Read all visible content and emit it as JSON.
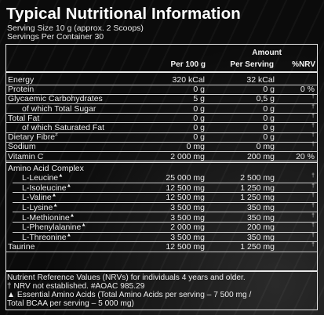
{
  "title": "Typical Nutritional Information",
  "serving_size": "Serving Size 10 g (approx. 2 Scoops)",
  "servings_per_container": "Servings Per Container 30",
  "headers": {
    "per_100g": "Per 100 g",
    "amount": "Amount",
    "per_serving": "Per Serving",
    "nrv": "%NRV"
  },
  "rows": [
    {
      "name": "Energy",
      "per100": "320 kCal",
      "serving": "32 kCal",
      "nrv": ""
    },
    {
      "name": "Protein",
      "per100": "0 g",
      "serving": "0 g",
      "nrv": "0 %"
    },
    {
      "name": "Glycaemic Carbohydrates",
      "per100": "5 g",
      "serving": "0,5 g",
      "nrv": "†"
    },
    {
      "name": "of which Total Sugar",
      "per100": "0 g",
      "serving": "0 g",
      "nrv": "†"
    },
    {
      "name": "Total Fat",
      "per100": "0 g",
      "serving": "0 g",
      "nrv": "†"
    },
    {
      "name": "of which Saturated Fat",
      "per100": "0 g",
      "serving": "0 g",
      "nrv": "†"
    },
    {
      "name": "Dietary Fibre",
      "sup": "#",
      "per100": "0 g",
      "serving": "0 g",
      "nrv": "†"
    },
    {
      "name": "Sodium",
      "per100": "0 mg",
      "serving": "0 mg",
      "nrv": "†"
    },
    {
      "name": "Vitamin C",
      "per100": "2 000 mg",
      "serving": "200 mg",
      "nrv": "20 %"
    }
  ],
  "amino_header": "Amino Acid Complex",
  "amino_rows": [
    {
      "name": "L-Leucine",
      "sup": "▲",
      "per100": "25 000 mg",
      "serving": "2 500 mg",
      "nrv": "†"
    },
    {
      "name": "L-Isoleucine",
      "sup": "▲",
      "per100": "12 500 mg",
      "serving": "1 250 mg",
      "nrv": "†"
    },
    {
      "name": "L-Valine",
      "sup": "▲",
      "per100": "12 500 mg",
      "serving": "1 250 mg",
      "nrv": "†"
    },
    {
      "name": "L-Lysine",
      "sup": "▲",
      "per100": "3 500 mg",
      "serving": "350 mg",
      "nrv": "†"
    },
    {
      "name": "L-Methionine",
      "sup": "▲",
      "per100": "3 500 mg",
      "serving": "350 mg",
      "nrv": "†"
    },
    {
      "name": "L-Phenylalanine",
      "sup": "▲",
      "per100": "2 000 mg",
      "serving": "200 mg",
      "nrv": "†"
    },
    {
      "name": "L-Threonine",
      "sup": "▲",
      "per100": "3 500 mg",
      "serving": "350 mg",
      "nrv": "†"
    },
    {
      "name": "Taurine",
      "per100": "12 500 mg",
      "serving": "1 250 mg",
      "nrv": "†"
    }
  ],
  "footnotes": {
    "line1": "Nutrient Reference Values (NRVs) for individuals 4 years and older.",
    "line2": "† NRV not established. #AOAC 985.29",
    "line3": "▲ Essential Amino Acids (Total Amino Acids per serving – 7 500 mg /",
    "line4": "Total BCAA per serving – 5 000 mg)"
  }
}
